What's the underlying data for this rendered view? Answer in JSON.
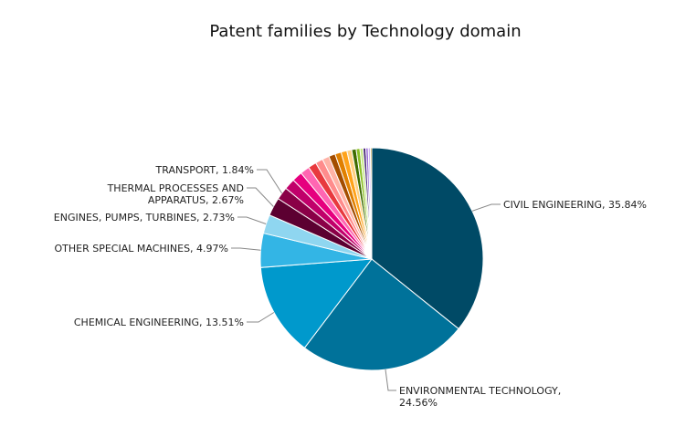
{
  "chart_data": {
    "type": "pie",
    "title": "Patent families by Technology domain",
    "slices": [
      {
        "name": "CIVIL ENGINEERING",
        "value": 35.84,
        "color": "#004a66",
        "label": [
          "CIVIL ENGINEERING, 35.84%"
        ]
      },
      {
        "name": "ENVIRONMENTAL TECHNOLOGY",
        "value": 24.56,
        "color": "#00729a",
        "label": [
          "ENVIRONMENTAL TECHNOLOGY,",
          "24.56%"
        ]
      },
      {
        "name": "CHEMICAL ENGINEERING",
        "value": 13.51,
        "color": "#0099cc",
        "label": [
          "CHEMICAL ENGINEERING, 13.51%"
        ]
      },
      {
        "name": "OTHER SPECIAL MACHINES",
        "value": 4.97,
        "color": "#33b5e5",
        "label": [
          "OTHER SPECIAL MACHINES, 4.97%"
        ]
      },
      {
        "name": "ENGINES, PUMPS, TURBINES",
        "value": 2.73,
        "color": "#8fd6f0",
        "label": [
          "ENGINES, PUMPS, TURBINES, 2.73%"
        ]
      },
      {
        "name": "THERMAL PROCESSES AND APPARATUS",
        "value": 2.67,
        "color": "#5c0031",
        "label": [
          "THERMAL PROCESSES AND",
          "APPARATUS, 2.67%"
        ]
      },
      {
        "name": "TRANSPORT",
        "value": 1.84,
        "color": "#8a0047",
        "label": [
          "TRANSPORT, 1.84%"
        ]
      },
      {
        "name": "",
        "value": 1.6,
        "color": "#c0006a",
        "label": []
      },
      {
        "name": "",
        "value": 1.5,
        "color": "#e6007e",
        "label": []
      },
      {
        "name": "",
        "value": 1.35,
        "color": "#ff66b2",
        "label": []
      },
      {
        "name": "",
        "value": 1.2,
        "color": "#e8393e",
        "label": []
      },
      {
        "name": "",
        "value": 1.1,
        "color": "#ff8c8c",
        "label": []
      },
      {
        "name": "",
        "value": 1.0,
        "color": "#ffb3a7",
        "label": []
      },
      {
        "name": "",
        "value": 0.95,
        "color": "#a34d00",
        "label": []
      },
      {
        "name": "",
        "value": 0.9,
        "color": "#e08000",
        "label": []
      },
      {
        "name": "",
        "value": 0.85,
        "color": "#ffa31a",
        "label": []
      },
      {
        "name": "",
        "value": 0.7,
        "color": "#ffd080",
        "label": []
      },
      {
        "name": "",
        "value": 0.65,
        "color": "#3f6b00",
        "label": []
      },
      {
        "name": "",
        "value": 0.55,
        "color": "#8cbf26",
        "label": []
      },
      {
        "name": "",
        "value": 0.45,
        "color": "#c8e88a",
        "label": []
      },
      {
        "name": "",
        "value": 0.4,
        "color": "#4b2a7a",
        "label": []
      },
      {
        "name": "",
        "value": 0.35,
        "color": "#9b6cd9",
        "label": []
      },
      {
        "name": "",
        "value": 0.3,
        "color": "#cdb3f0",
        "label": []
      },
      {
        "name": "",
        "value": 0.2,
        "color": "#b8860b",
        "label": []
      }
    ]
  }
}
